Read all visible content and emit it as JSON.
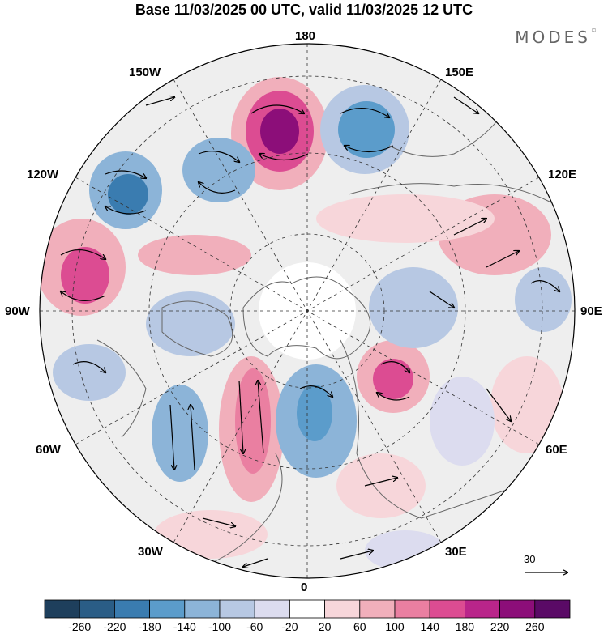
{
  "title": "Base 11/03/2025 00 UTC, valid 11/03/2025 12 UTC",
  "brand": "MODES",
  "brand_mark": "©",
  "longitude_labels": {
    "top": "180",
    "bottom": "0",
    "left": "90W",
    "right": "90E",
    "upper_left_150": "150W",
    "upper_right_150": "150E",
    "upper_left_120": "120W",
    "upper_right_120": "120E",
    "lower_left_60": "60W",
    "lower_right_60": "60E",
    "lower_left_30": "30W",
    "lower_right_30": "30E"
  },
  "reference_vector": {
    "label": "30"
  },
  "colorbar": {
    "ticks": [
      "-260",
      "-220",
      "-180",
      "-140",
      "-100",
      "-60",
      "-20",
      "20",
      "60",
      "100",
      "140",
      "180",
      "220",
      "260"
    ],
    "colors": [
      "#1e3f5c",
      "#2a5d86",
      "#3a7cb0",
      "#5b9ccb",
      "#8cb4d8",
      "#b7c8e3",
      "#dcdcef",
      "#ffffff",
      "#f7d6da",
      "#f1afbb",
      "#ea7fa1",
      "#dc4c92",
      "#b9258a",
      "#8c0e79",
      "#5a0a66"
    ]
  },
  "map": {
    "projection": "north-polar-stereographic",
    "field": "anomaly",
    "ocean_color": "#eeeeee",
    "coastline_color": "#666666"
  }
}
